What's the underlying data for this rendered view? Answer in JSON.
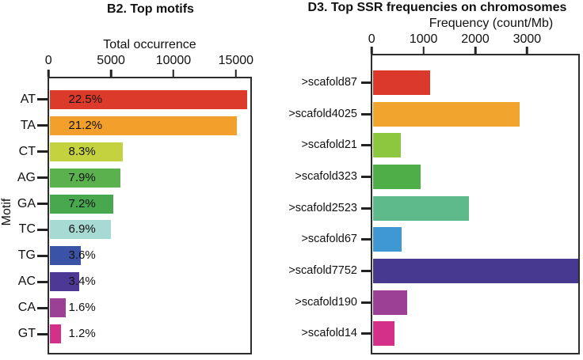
{
  "figure": {
    "background": "#ffffff",
    "text_color": "#111111",
    "frame_color": "#2d2d2d"
  },
  "chart_data": [
    {
      "id": "motifs",
      "type": "bar",
      "orientation": "horizontal",
      "title": "B2. Top motifs",
      "xlabel": "Total occurrence",
      "ylabel": "Motif",
      "xlim": [
        0,
        16200
      ],
      "xticks": [
        0,
        5000,
        10000,
        15000
      ],
      "grid": false,
      "legend": false,
      "bars": [
        {
          "category": "AT",
          "value": 15980,
          "label": "22.5%",
          "color": "#dc3a2b"
        },
        {
          "category": "TA",
          "value": 15150,
          "label": "21.2%",
          "color": "#f2a02b"
        },
        {
          "category": "CT",
          "value": 5950,
          "label": "8.3%",
          "color": "#c4d240"
        },
        {
          "category": "AG",
          "value": 5700,
          "label": "7.9%",
          "color": "#5ab14e"
        },
        {
          "category": "GA",
          "value": 5130,
          "label": "7.2%",
          "color": "#47a84e"
        },
        {
          "category": "TC",
          "value": 4990,
          "label": "6.9%",
          "color": "#a6dad3"
        },
        {
          "category": "TG",
          "value": 2560,
          "label": "3.6%",
          "color": "#3b53a6"
        },
        {
          "category": "AC",
          "value": 2430,
          "label": "3.4%",
          "color": "#4d3896"
        },
        {
          "category": "CA",
          "value": 1300,
          "label": "1.6%",
          "color": "#9c4095"
        },
        {
          "category": "GT",
          "value": 930,
          "label": "1.2%",
          "color": "#d43089"
        }
      ]
    },
    {
      "id": "ssr",
      "type": "bar",
      "orientation": "horizontal",
      "title": "D3. Top SSR frequencies on chromosomes",
      "xlabel": "Frequency (count/Mb)",
      "xlim": [
        0,
        4000
      ],
      "xticks": [
        0,
        1000,
        2000,
        3000
      ],
      "grid": false,
      "legend": false,
      "bars": [
        {
          "category": ">scafold87",
          "value": 1120,
          "color": "#da392c"
        },
        {
          "category": ">scafold4025",
          "value": 2870,
          "color": "#f1a42e"
        },
        {
          "category": ">scafold21",
          "value": 545,
          "color": "#8dc73f"
        },
        {
          "category": ">scafold323",
          "value": 940,
          "color": "#4fae47"
        },
        {
          "category": ">scafold2523",
          "value": 1870,
          "color": "#5eba8b"
        },
        {
          "category": ">scafold67",
          "value": 570,
          "color": "#3f98d4"
        },
        {
          "category": ">scafold7752",
          "value": 4000,
          "color": "#46398f"
        },
        {
          "category": ">scafold190",
          "value": 670,
          "color": "#9c4095"
        },
        {
          "category": ">scafold14",
          "value": 420,
          "color": "#d43089"
        }
      ]
    }
  ]
}
